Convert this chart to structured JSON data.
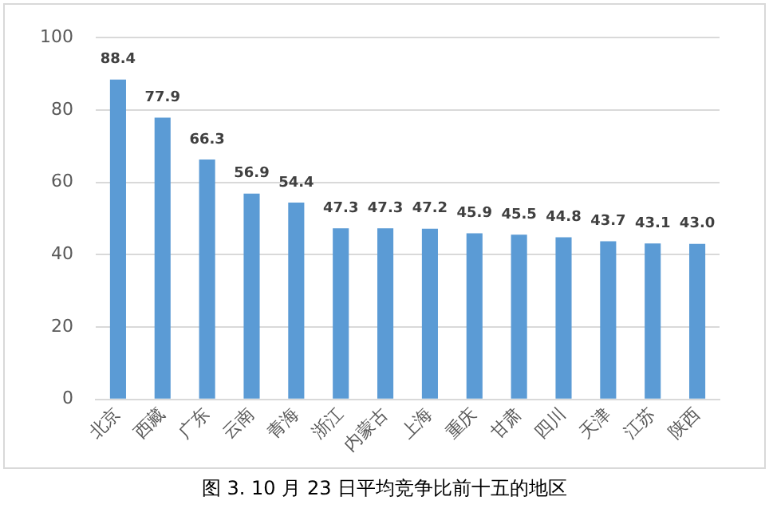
{
  "chart_data": {
    "type": "bar",
    "title": "图 3. 10 月 23 日平均竞争比前十五的地区",
    "categories": [
      "北京",
      "西藏",
      "广东",
      "云南",
      "青海",
      "浙江",
      "内蒙古",
      "上海",
      "重庆",
      "甘肃",
      "四川",
      "天津",
      "江苏",
      "陕西"
    ],
    "values": [
      88.4,
      77.9,
      66.3,
      56.9,
      54.4,
      47.3,
      47.3,
      47.2,
      45.9,
      45.5,
      44.8,
      43.7,
      43.1,
      43.0
    ],
    "value_labels": [
      "88.4",
      "77.9",
      "66.3",
      "56.9",
      "54.4",
      "47.3",
      "47.3",
      "47.2",
      "45.9",
      "45.5",
      "44.8",
      "43.7",
      "43.1",
      "43.0"
    ],
    "color": "#5b9bd5",
    "ylim": [
      0,
      100
    ],
    "yticks": [
      0,
      20,
      40,
      60,
      80,
      100
    ],
    "grid": "y",
    "legend": false
  }
}
